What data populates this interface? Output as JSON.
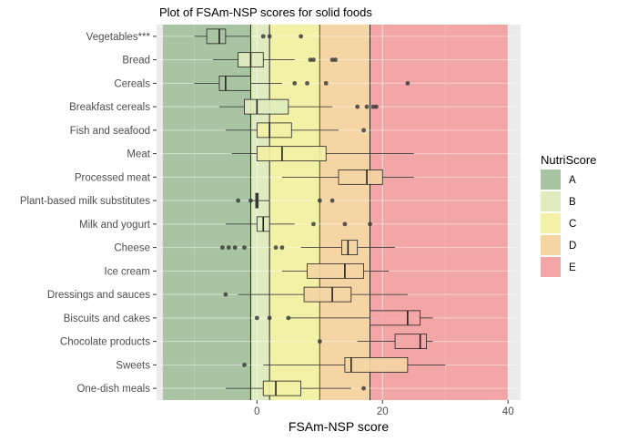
{
  "chart_data": {
    "type": "box",
    "title": "Plot of FSAm-NSP scores for solid foods",
    "xlabel": "FSAm-NSP score",
    "ylabel": "",
    "xlim": [
      -16,
      42
    ],
    "xticks": [
      0,
      20,
      40
    ],
    "x_tick_labels": [
      "0",
      "20",
      "40"
    ],
    "grid": true,
    "legend_position": "right",
    "legend": {
      "title": "NutriScore",
      "entries": [
        {
          "label": "A",
          "color": "#a8c4a2"
        },
        {
          "label": "B",
          "color": "#e0ecbf"
        },
        {
          "label": "C",
          "color": "#f3f1a5"
        },
        {
          "label": "D",
          "color": "#f4d5a3"
        },
        {
          "label": "E",
          "color": "#f3a6a6"
        }
      ]
    },
    "zones": [
      {
        "label": "A",
        "from": -15,
        "to": -1,
        "color": "#a8c4a2"
      },
      {
        "label": "B",
        "from": -1,
        "to": 2,
        "color": "#e0ecbf"
      },
      {
        "label": "C",
        "from": 2,
        "to": 10,
        "color": "#f3f1a5"
      },
      {
        "label": "D",
        "from": 10,
        "to": 18,
        "color": "#f4d5a3"
      },
      {
        "label": "E",
        "from": 18,
        "to": 40,
        "color": "#f3a6a6"
      }
    ],
    "categories": [
      "Vegetables***",
      "Bread",
      "Cereals",
      "Breakfast cereals",
      "Fish and seafood",
      "Meat",
      "Processed meat",
      "Plant-based milk substitutes",
      "Milk and yogurt",
      "Cheese",
      "Ice cream",
      "Dressings and sauces",
      "Biscuits and cakes",
      "Chocolate products",
      "Sweets",
      "One-dish meals"
    ],
    "boxes": [
      {
        "category": "Vegetables***",
        "whisker_low": -10,
        "q1": -8,
        "median": -6,
        "q3": -5,
        "whisker_high": -1,
        "outliers": [
          1,
          2,
          7
        ]
      },
      {
        "category": "Bread",
        "whisker_low": -7,
        "q1": -3,
        "median": -1,
        "q3": 1,
        "whisker_high": 6,
        "outliers": [
          8.5,
          9,
          12,
          12.5
        ]
      },
      {
        "category": "Cereals",
        "whisker_low": -10,
        "q1": -6,
        "median": -5,
        "q3": -1,
        "whisker_high": 4,
        "outliers": [
          6,
          8,
          11,
          24
        ]
      },
      {
        "category": "Breakfast cereals",
        "whisker_low": -6,
        "q1": -2,
        "median": 0,
        "q3": 5,
        "whisker_high": 12,
        "outliers": [
          16,
          17.5,
          18.5,
          19
        ]
      },
      {
        "category": "Fish and seafood",
        "whisker_low": -5,
        "q1": 0,
        "median": 2,
        "q3": 5.5,
        "whisker_high": 13,
        "outliers": [
          17
        ]
      },
      {
        "category": "Meat",
        "whisker_low": -4,
        "q1": 0,
        "median": 4,
        "q3": 11,
        "whisker_high": 25,
        "outliers": []
      },
      {
        "category": "Processed meat",
        "whisker_low": 4,
        "q1": 13,
        "median": 17.5,
        "q3": 20,
        "whisker_high": 25,
        "outliers": []
      },
      {
        "category": "Plant-based milk substitutes",
        "whisker_low": -1,
        "q1": -0.2,
        "median": 0,
        "q3": 0.2,
        "whisker_high": 2,
        "outliers": [
          -3,
          -1,
          10,
          12
        ]
      },
      {
        "category": "Milk and yogurt",
        "whisker_low": -5,
        "q1": 0,
        "median": 1,
        "q3": 2,
        "whisker_high": 6,
        "outliers": [
          9,
          14,
          18
        ]
      },
      {
        "category": "Cheese",
        "whisker_low": 7,
        "q1": 13.5,
        "median": 14.5,
        "q3": 16,
        "whisker_high": 22,
        "outliers": [
          -5.5,
          -4.5,
          -3.5,
          -2,
          3,
          4
        ]
      },
      {
        "category": "Ice cream",
        "whisker_low": 4,
        "q1": 8,
        "median": 14,
        "q3": 17,
        "whisker_high": 21,
        "outliers": []
      },
      {
        "category": "Dressings and sauces",
        "whisker_low": -3,
        "q1": 7.5,
        "median": 12,
        "q3": 15,
        "whisker_high": 24,
        "outliers": [
          -5
        ]
      },
      {
        "category": "Biscuits and cakes",
        "whisker_low": 5,
        "q1": 18,
        "median": 24,
        "q3": 26,
        "whisker_high": 28,
        "outliers": [
          0,
          2,
          5
        ]
      },
      {
        "category": "Chocolate products",
        "whisker_low": 16,
        "q1": 22,
        "median": 26,
        "q3": 27,
        "whisker_high": 28,
        "outliers": [
          10
        ]
      },
      {
        "category": "Sweets",
        "whisker_low": 1,
        "q1": 14,
        "median": 15,
        "q3": 24,
        "whisker_high": 30,
        "outliers": [
          -2
        ]
      },
      {
        "category": "One-dish meals",
        "whisker_low": -5,
        "q1": 1,
        "median": 3,
        "q3": 7,
        "whisker_high": 15,
        "outliers": [
          17
        ]
      }
    ]
  }
}
